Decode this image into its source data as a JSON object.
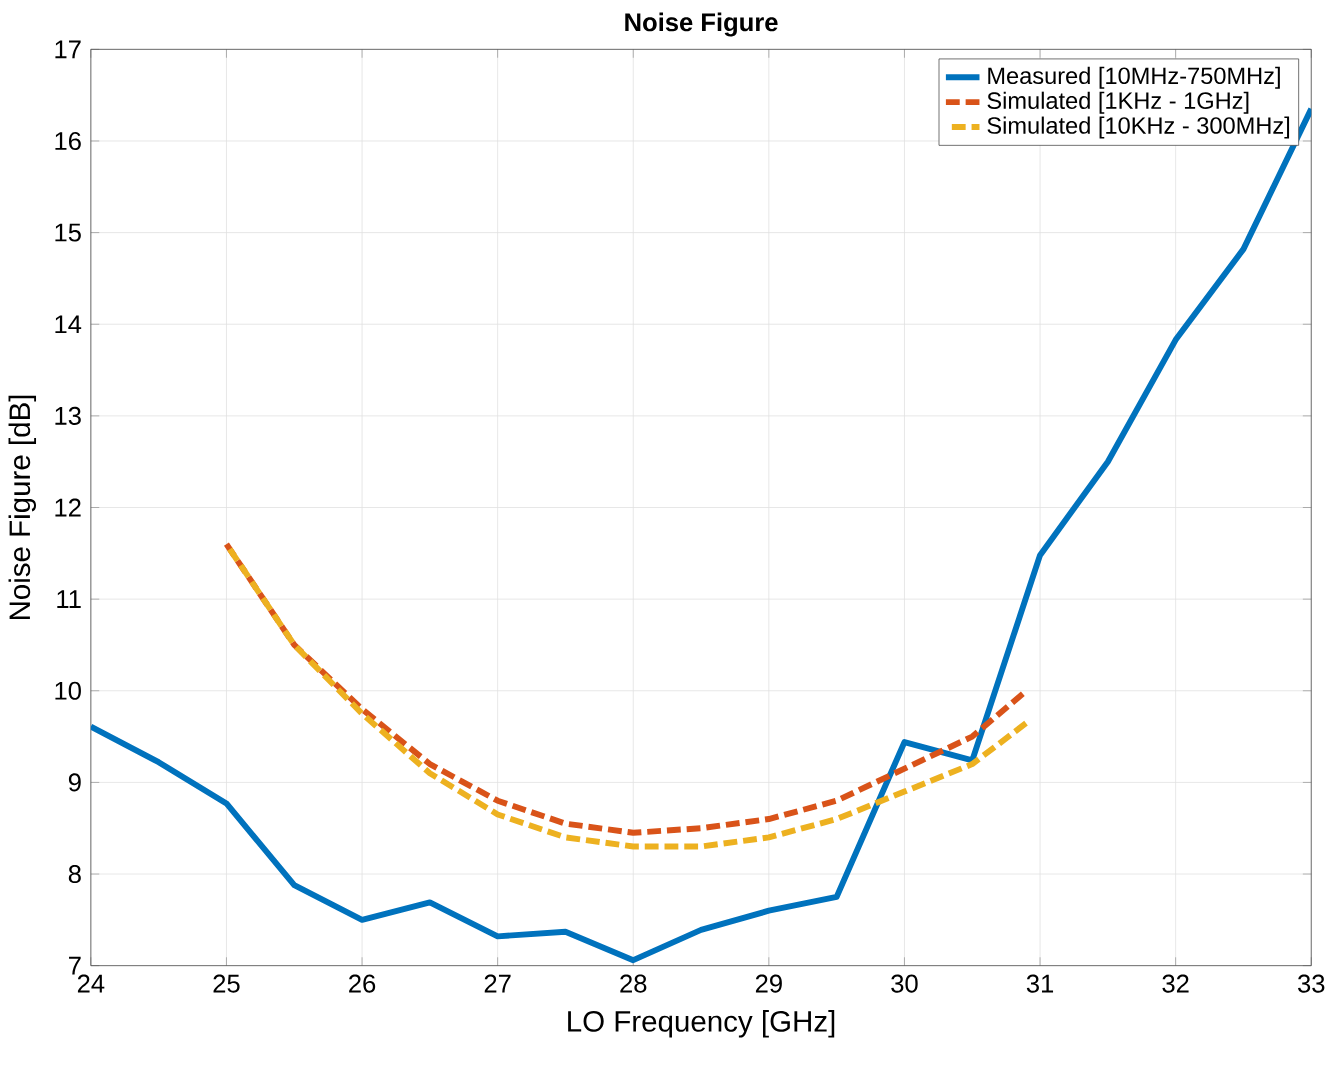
{
  "chart_data": {
    "type": "line",
    "title": "Noise Figure",
    "xlabel": "LO Frequency [GHz]",
    "ylabel": "Noise Figure [dB]",
    "xlim": [
      24,
      33
    ],
    "xticks": [
      24,
      25,
      26,
      27,
      28,
      29,
      30,
      31,
      32,
      33
    ],
    "ylim": [
      7,
      17
    ],
    "yticks": [
      7,
      8,
      9,
      10,
      11,
      12,
      13,
      14,
      15,
      16,
      17
    ],
    "grid": true,
    "legend": "top right",
    "series": [
      {
        "name": "Measured [10MHz-750MHz]",
        "color": "#0072bd",
        "line_style": "solid",
        "x": [
          24,
          24.5,
          25,
          25.5,
          26,
          26.5,
          27,
          27.5,
          28,
          28.5,
          29,
          29.5,
          30,
          30.5,
          31,
          31.5,
          32,
          32.5,
          33
        ],
        "values": [
          9.61,
          9.22,
          8.77,
          7.88,
          7.5,
          7.69,
          7.32,
          7.37,
          7.06,
          7.39,
          7.6,
          7.75,
          9.44,
          9.24,
          11.48,
          12.5,
          13.83,
          14.82,
          16.35
        ]
      },
      {
        "name": "Simulated [1KHz - 1GHz]",
        "color": "#d95319",
        "line_style": "dashed",
        "x": [
          25,
          25.5,
          26,
          26.5,
          27,
          27.5,
          28,
          28.5,
          29,
          29.5,
          30,
          30.5,
          30.9
        ],
        "values": [
          11.6,
          10.5,
          9.8,
          9.2,
          8.8,
          8.55,
          8.45,
          8.5,
          8.6,
          8.8,
          9.15,
          9.5,
          10.0
        ]
      },
      {
        "name": "Simulated [10KHz - 300MHz]",
        "color": "#edb120",
        "line_style": "dashed",
        "x": [
          25,
          25.5,
          26,
          26.5,
          27,
          27.5,
          28,
          28.5,
          29,
          29.5,
          30,
          30.5,
          30.9
        ],
        "values": [
          11.6,
          10.5,
          9.75,
          9.1,
          8.65,
          8.4,
          8.3,
          8.3,
          8.4,
          8.6,
          8.9,
          9.2,
          9.65
        ]
      }
    ]
  }
}
